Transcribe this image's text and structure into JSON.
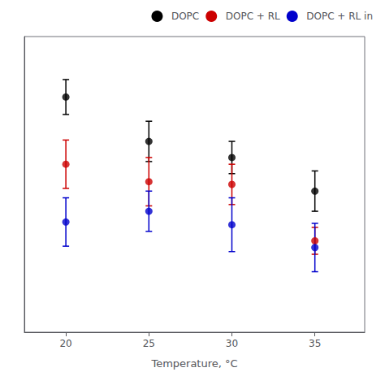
{
  "chart_data": {
    "type": "scatter",
    "xlabel": "Temperature, °C",
    "x": [
      20,
      25,
      30,
      35
    ],
    "series": [
      {
        "name": "DOPC",
        "color": "#000000",
        "values": [
          20.5,
          17.2,
          16.0,
          13.5
        ],
        "yerr_low": [
          1.3,
          1.5,
          1.2,
          1.5
        ],
        "yerr_high": [
          1.3,
          1.5,
          1.2,
          1.5
        ]
      },
      {
        "name": "DOPC + RL",
        "color": "#cc0000",
        "values": [
          15.5,
          14.2,
          14.0,
          9.8
        ],
        "yerr_low": [
          1.8,
          1.8,
          1.5,
          1.0
        ],
        "yerr_high": [
          1.8,
          1.8,
          1.5,
          1.0
        ]
      },
      {
        "name": "DOPC + RL in",
        "color": "#0000cc",
        "values": [
          11.2,
          12.0,
          11.0,
          9.3
        ],
        "yerr_low": [
          1.8,
          1.5,
          2.0,
          1.8
        ],
        "yerr_high": [
          1.8,
          1.5,
          2.0,
          1.8
        ]
      }
    ],
    "xlim": [
      17.5,
      38.0
    ],
    "xticks": [
      20,
      25,
      30,
      35
    ],
    "ylim": [
      3,
      25
    ],
    "yticks": [],
    "tick_labels": "x",
    "grid": false,
    "legend": "upper right",
    "marker": "circle"
  }
}
